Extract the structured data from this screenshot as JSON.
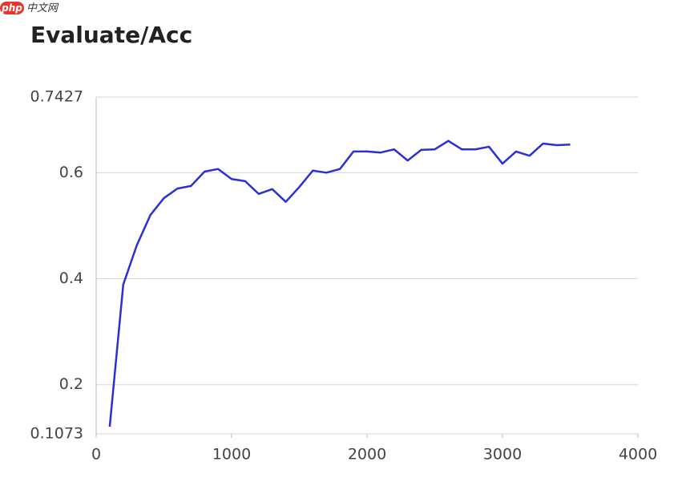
{
  "watermark": {
    "logo": "php",
    "text": "中文网"
  },
  "chart_data": {
    "type": "line",
    "title": "Evaluate/Acc",
    "x": [
      100,
      200,
      300,
      400,
      500,
      600,
      700,
      800,
      900,
      1000,
      1100,
      1200,
      1300,
      1400,
      1500,
      1600,
      1700,
      1800,
      1900,
      2000,
      2100,
      2200,
      2300,
      2400,
      2500,
      2600,
      2700,
      2800,
      2900,
      3000,
      3100,
      3200,
      3300,
      3400,
      3500
    ],
    "series": [
      {
        "name": "Evaluate/Acc",
        "color": "#2b2fd6",
        "values": [
          0.121,
          0.389,
          0.463,
          0.52,
          0.552,
          0.57,
          0.575,
          0.602,
          0.607,
          0.588,
          0.584,
          0.56,
          0.569,
          0.545,
          0.573,
          0.604,
          0.6,
          0.607,
          0.64,
          0.64,
          0.638,
          0.644,
          0.623,
          0.643,
          0.644,
          0.66,
          0.644,
          0.644,
          0.649,
          0.617,
          0.64,
          0.632,
          0.655,
          0.652,
          0.653
        ]
      }
    ],
    "xlim": [
      0,
      4000
    ],
    "xticks": [
      0,
      1000,
      2000,
      3000,
      4000
    ],
    "ylim": [
      0.1073,
      0.7427
    ],
    "yticks": [
      0.1073,
      0.2,
      0.4,
      0.6,
      0.7427
    ],
    "grid": true
  }
}
